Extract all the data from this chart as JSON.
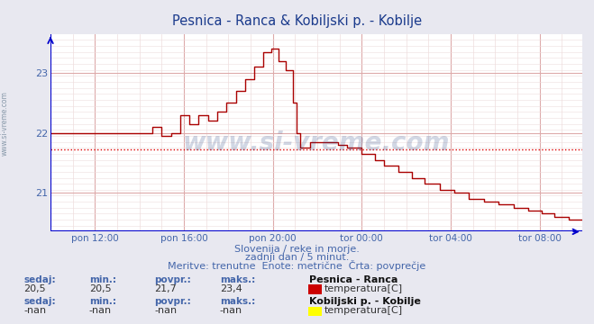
{
  "title": "Pesnica - Ranca & Kobiljski p. - Kobilje",
  "title_color": "#1a3a8c",
  "bg_color": "#e8e8f0",
  "plot_bg_color": "#ffffff",
  "grid_color": "#ddaaaa",
  "grid_minor_color": "#eedddd",
  "line_color": "#aa0000",
  "avg_line_color": "#dd0000",
  "avg_value": 21.72,
  "axis_color": "#0000cc",
  "text_color": "#4466aa",
  "watermark": "www.si-vreme.com",
  "ylim": [
    20.35,
    23.65
  ],
  "yticks": [
    21,
    22,
    23
  ],
  "xlabels": [
    "pon 12:00",
    "pon 16:00",
    "pon 20:00",
    "tor 00:00",
    "tor 04:00",
    "tor 08:00"
  ],
  "subtitle1": "Slovenija / reke in morje.",
  "subtitle2": "zadnji dan / 5 minut.",
  "subtitle3": "Meritve: trenutne  Enote: metrične  Črta: povprečje",
  "legend1_title": "Pesnica - Ranca",
  "legend1_label": "temperatura[C]",
  "legend1_color": "#cc0000",
  "legend2_title": "Kobiljski p. - Kobilje",
  "legend2_label": "temperatura[C]",
  "legend2_color": "#ffff00",
  "stats1": {
    "sedaj": "20,5",
    "min": "20,5",
    "povpr": "21,7",
    "maks": "23,4"
  },
  "stats2": {
    "sedaj": "-nan",
    "min": "-nan",
    "povpr": "-nan",
    "maks": "-nan"
  },
  "n_points": 288,
  "tick_indices": [
    24,
    72,
    120,
    168,
    216,
    264
  ]
}
